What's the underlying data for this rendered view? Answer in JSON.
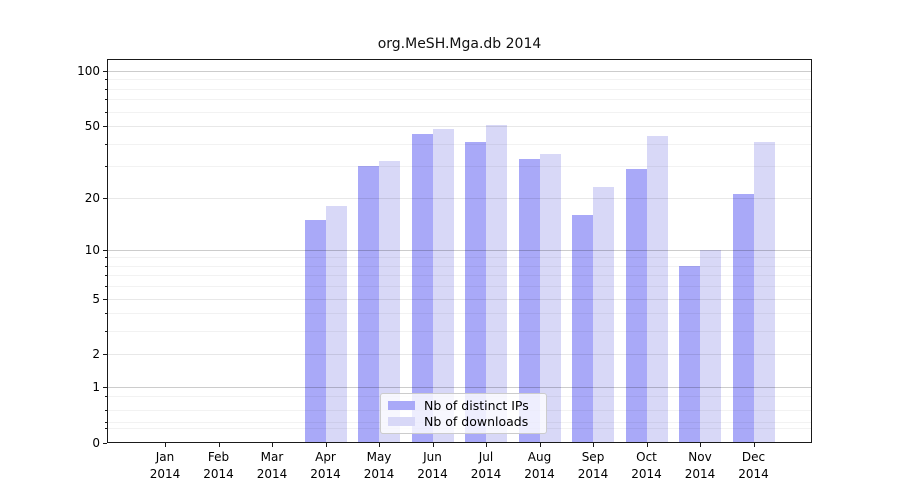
{
  "title": "org.MeSH.Mga.db 2014",
  "legend": {
    "items": [
      {
        "label": "Nb of distinct IPs",
        "color": "#a9a9f8"
      },
      {
        "label": "Nb of downloads",
        "color": "#d8d8f7"
      }
    ]
  },
  "chart_data": {
    "type": "bar",
    "title": "org.MeSH.Mga.db 2014",
    "categories": [
      "Jan",
      "Feb",
      "Mar",
      "Apr",
      "May",
      "Jun",
      "Jul",
      "Aug",
      "Sep",
      "Oct",
      "Nov",
      "Dec"
    ],
    "year": "2014",
    "xlabel": "",
    "ylabel": "",
    "yscale": "log1p",
    "yticks": [
      0,
      1,
      2,
      5,
      10,
      20,
      50,
      100
    ],
    "minor_yticks": [
      0.2,
      0.3,
      0.5,
      0.8,
      3,
      4,
      6,
      7,
      8,
      9,
      30,
      40,
      60,
      70,
      80,
      90
    ],
    "ylim": [
      0,
      116
    ],
    "grid": true,
    "legend_position": "lower-center-inside",
    "series": [
      {
        "name": "Nb of distinct IPs",
        "color": "#a9a9f8",
        "values": [
          0,
          0,
          0,
          15,
          30,
          45,
          41,
          33,
          16,
          29,
          8,
          21
        ]
      },
      {
        "name": "Nb of downloads",
        "color": "#d8d8f7",
        "values": [
          0,
          0,
          0,
          18,
          32,
          48,
          51,
          35,
          23,
          44,
          10,
          41
        ]
      }
    ]
  },
  "colors": {
    "background": "#ffffff",
    "axis": "#1a1a1a",
    "bar_distinct_ips": "#a9a9f8",
    "bar_downloads": "#d8d8f7"
  }
}
